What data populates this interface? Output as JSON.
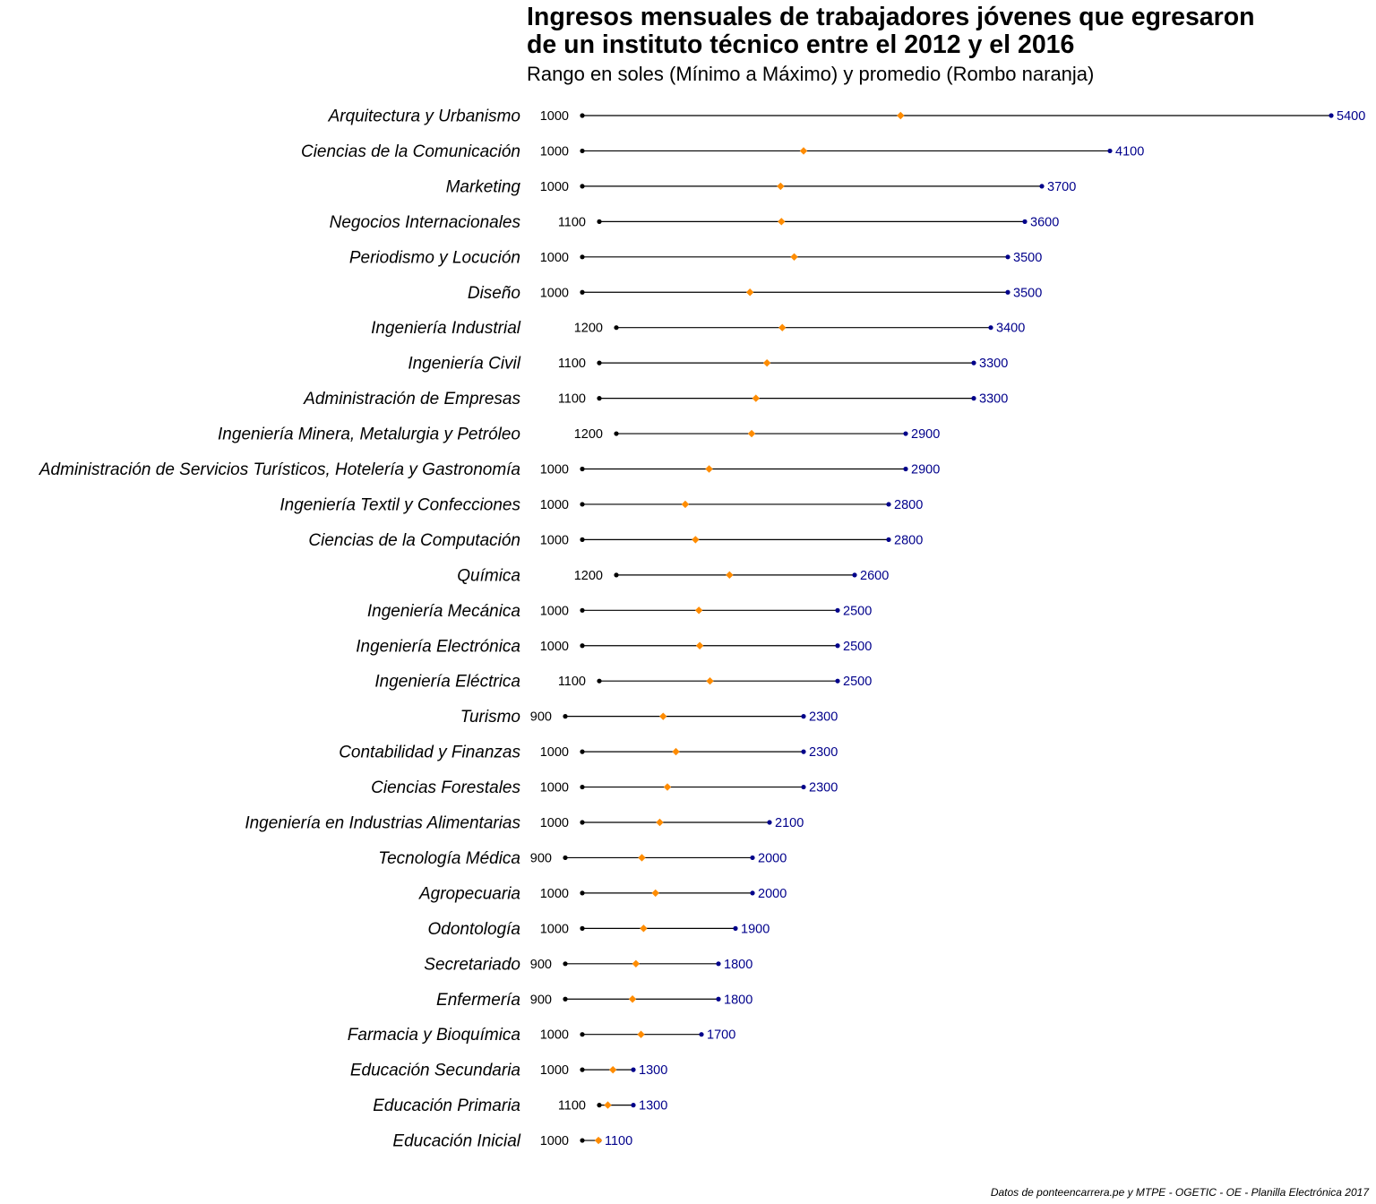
{
  "chart_data": {
    "type": "dumbbell",
    "title": "Ingresos mensuales de trabajadores jóvenes que egresaron\nde un instituto técnico entre el 2012 y el 2016",
    "subtitle": "Rango en soles (Mínimo a Máximo) y promedio (Rombo naranja)",
    "caption": "Datos de ponteencarrera.pe y MTPE - OGETIC - OE - Planilla Electrónica 2017",
    "xlim": [
      900,
      5400
    ],
    "grid": false,
    "colors": {
      "min_point": "#000000",
      "max_point": "#00008b",
      "mean_point": "#ff8c00",
      "segment": "#000000",
      "max_label": "#00008b"
    },
    "categories": [
      "Arquitectura y Urbanismo",
      "Ciencias de la Comunicación",
      "Marketing",
      "Negocios Internacionales",
      "Periodismo y Locución",
      "Diseño",
      "Ingeniería Industrial",
      "Ingeniería Civil",
      "Administración de Empresas",
      "Ingeniería Minera, Metalurgia y Petróleo",
      "Administración de Servicios Turísticos, Hotelería y Gastronomía",
      "Ingeniería Textil y Confecciones",
      "Ciencias de la Computación",
      "Química",
      "Ingeniería Mecánica",
      "Ingeniería Electrónica",
      "Ingeniería Eléctrica",
      "Turismo",
      "Contabilidad y Finanzas",
      "Ciencias Forestales",
      "Ingeniería en Industrias Alimentarias",
      "Tecnología Médica",
      "Agropecuaria",
      "Odontología",
      "Secretariado",
      "Enfermería",
      "Farmacia y Bioquímica",
      "Educación Secundaria",
      "Educación Primaria",
      "Educación Inicial"
    ],
    "min": [
      1000,
      1000,
      1000,
      1100,
      1000,
      1000,
      1200,
      1100,
      1100,
      1200,
      1000,
      1000,
      1000,
      1200,
      1000,
      1000,
      1100,
      900,
      1000,
      1000,
      1000,
      900,
      1000,
      1000,
      900,
      900,
      1000,
      1000,
      1100,
      1000
    ],
    "max": [
      5400,
      4100,
      3700,
      3600,
      3500,
      3500,
      3400,
      3300,
      3300,
      2900,
      2900,
      2800,
      2800,
      2600,
      2500,
      2500,
      2500,
      2300,
      2300,
      2300,
      2100,
      2000,
      2000,
      1900,
      1800,
      1800,
      1700,
      1300,
      1300,
      1100
    ],
    "mean": [
      2870,
      2300,
      2165,
      2170,
      2245,
      1985,
      2175,
      2085,
      2020,
      1995,
      1745,
      1605,
      1665,
      1865,
      1685,
      1690,
      1750,
      1475,
      1550,
      1500,
      1455,
      1350,
      1430,
      1360,
      1315,
      1295,
      1345,
      1180,
      1150,
      1095
    ]
  }
}
